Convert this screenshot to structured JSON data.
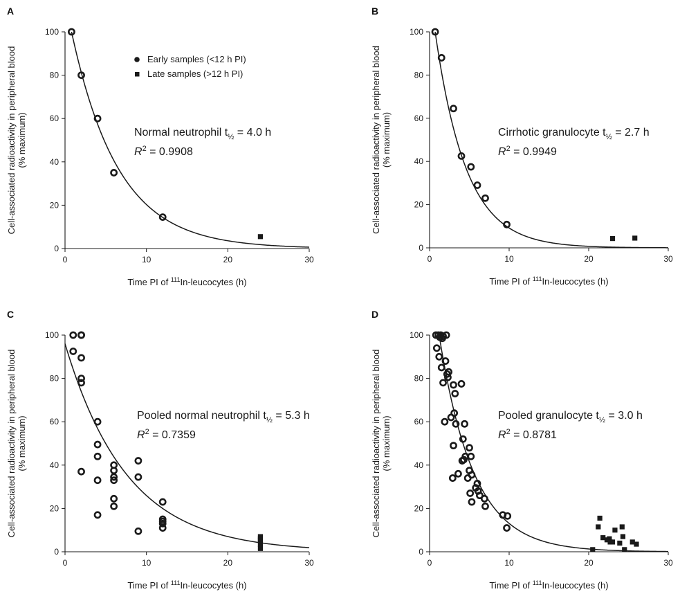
{
  "chart_data": [
    {
      "panel": "A",
      "type": "scatter",
      "xlabel": {
        "before": "Time PI of ",
        "sup": "111",
        "after": "In-leucocytes (h)"
      },
      "ylabel_line1": "Cell-associated radioactivity in peripheral blood",
      "ylabel_line2": "(% maximum)",
      "xlim": [
        0,
        30
      ],
      "ylim": [
        0,
        100
      ],
      "xticks": [
        0,
        10,
        20,
        30
      ],
      "yticks": [
        0,
        20,
        40,
        60,
        80,
        100
      ],
      "legend": [
        {
          "name": "Early samples (<12 h PI)",
          "marker": "circle"
        },
        {
          "name": "Late samples (>12 h PI)",
          "marker": "square"
        }
      ],
      "annotation": {
        "line1_prefix": "Normal neutrophil t",
        "line1_sub": "½",
        "line1_suffix": " = 4.0 h",
        "r2_prefix": "R",
        "r2_sup": "2",
        "r2_value": " = 0.9908"
      },
      "fit": {
        "a": 100,
        "halflife": 4.0,
        "x0": 0.8
      },
      "series": [
        {
          "name": "Early samples (<12 h PI)",
          "marker": "circle",
          "points": [
            [
              0.8,
              100
            ],
            [
              2,
              80
            ],
            [
              4,
              60
            ],
            [
              6,
              35
            ],
            [
              12,
              14.5
            ]
          ]
        },
        {
          "name": "Late samples (>12 h PI)",
          "marker": "square",
          "points": [
            [
              24,
              5.5
            ]
          ]
        }
      ]
    },
    {
      "panel": "B",
      "type": "scatter",
      "xlabel": {
        "before": "Time PI of ",
        "sup": "111",
        "after": "In-leucocytes (h)"
      },
      "ylabel_line1": "Cell-associated radioactivity in peripheral blood",
      "ylabel_line2": "(% maximum)",
      "xlim": [
        0,
        30
      ],
      "ylim": [
        0,
        100
      ],
      "xticks": [
        0,
        10,
        20,
        30
      ],
      "yticks": [
        0,
        20,
        40,
        60,
        80,
        100
      ],
      "annotation": {
        "line1_prefix": "Cirrhotic granulocyte t",
        "line1_sub": "½",
        "line1_suffix": " = 2.7 h",
        "r2_prefix": "R",
        "r2_sup": "2",
        "r2_value": " = 0.9949"
      },
      "fit": {
        "a": 100,
        "halflife": 2.7,
        "x0": 0.7
      },
      "series": [
        {
          "name": "Early samples (<12 h PI)",
          "marker": "circle",
          "points": [
            [
              0.7,
              100
            ],
            [
              1.5,
              88
            ],
            [
              3,
              64.5
            ],
            [
              4,
              42.5
            ],
            [
              5.2,
              37.5
            ],
            [
              6,
              29
            ],
            [
              7,
              23
            ],
            [
              9.7,
              10.8
            ]
          ]
        },
        {
          "name": "Late samples (>12 h PI)",
          "marker": "square",
          "points": [
            [
              23,
              4.3
            ],
            [
              25.8,
              4.5
            ]
          ]
        }
      ]
    },
    {
      "panel": "C",
      "type": "scatter",
      "xlabel": {
        "before": "Time PI of ",
        "sup": "111",
        "after": "In-leucocytes (h)"
      },
      "ylabel_line1": "Cell-associated radioactivity in peripheral blood",
      "ylabel_line2": "(% maximum)",
      "xlim": [
        0,
        30
      ],
      "ylim": [
        0,
        100
      ],
      "xticks": [
        0,
        10,
        20,
        30
      ],
      "yticks": [
        0,
        20,
        40,
        60,
        80,
        100
      ],
      "annotation": {
        "line1_prefix": "Pooled normal neutrophil t",
        "line1_sub": "½",
        "line1_suffix": " = 5.3 h",
        "r2_prefix": "R",
        "r2_sup": "2",
        "r2_value": " = 0.7359"
      },
      "fit": {
        "a": 96,
        "halflife": 5.3,
        "x0": 0
      },
      "series": [
        {
          "name": "Early samples (<12 h PI)",
          "marker": "circle",
          "points": [
            [
              1,
              100
            ],
            [
              1,
              92.5
            ],
            [
              2,
              100
            ],
            [
              2,
              100
            ],
            [
              2,
              89.5
            ],
            [
              2,
              80
            ],
            [
              2,
              78
            ],
            [
              2,
              37
            ],
            [
              4,
              60
            ],
            [
              4,
              49.5
            ],
            [
              4,
              44
            ],
            [
              4,
              33
            ],
            [
              4,
              17
            ],
            [
              6,
              40
            ],
            [
              6,
              37.5
            ],
            [
              6,
              34.5
            ],
            [
              6,
              33
            ],
            [
              6,
              24.5
            ],
            [
              6,
              21
            ],
            [
              9,
              42
            ],
            [
              9,
              34.5
            ],
            [
              9,
              9.5
            ],
            [
              12,
              23
            ],
            [
              12,
              15
            ],
            [
              12,
              14
            ],
            [
              12,
              13
            ],
            [
              12,
              11
            ]
          ]
        },
        {
          "name": "Late samples (>12 h PI)",
          "marker": "square",
          "points": [
            [
              24,
              7
            ],
            [
              24,
              6
            ],
            [
              24,
              5
            ],
            [
              24,
              3.5
            ],
            [
              24,
              1.5
            ]
          ]
        }
      ]
    },
    {
      "panel": "D",
      "type": "scatter",
      "xlabel": {
        "before": "Time PI of ",
        "sup": "111",
        "after": "In-leucocytes (h)"
      },
      "ylabel_line1": "Cell-associated radioactivity in peripheral blood",
      "ylabel_line2": "(% maximum)",
      "xlim": [
        0,
        30
      ],
      "ylim": [
        0,
        100
      ],
      "xticks": [
        0,
        10,
        20,
        30
      ],
      "yticks": [
        0,
        20,
        40,
        60,
        80,
        100
      ],
      "annotation": {
        "line1_prefix": "Pooled granulocyte t",
        "line1_sub": "½",
        "line1_suffix": " = 3.0 h",
        "r2_prefix": "R",
        "r2_sup": "2",
        "r2_value": " = 0.8781"
      },
      "fit": {
        "a": 100,
        "halflife": 3.0,
        "x0": 1.2
      },
      "series": [
        {
          "name": "Early samples (<12 h PI)",
          "marker": "circle",
          "points": [
            [
              0.8,
              100
            ],
            [
              1.1,
              100
            ],
            [
              1.4,
              100
            ],
            [
              1.7,
              99.5
            ],
            [
              2.1,
              100
            ],
            [
              1.3,
              99
            ],
            [
              1.6,
              98.5
            ],
            [
              0.9,
              94
            ],
            [
              1.2,
              90
            ],
            [
              1.5,
              85
            ],
            [
              1.7,
              78
            ],
            [
              2,
              88
            ],
            [
              2.2,
              82
            ],
            [
              2.4,
              83
            ],
            [
              2.3,
              80.5
            ],
            [
              1.9,
              60
            ],
            [
              2.7,
              62
            ],
            [
              3,
              77
            ],
            [
              3.2,
              73
            ],
            [
              3.1,
              64
            ],
            [
              3.3,
              59
            ],
            [
              3,
              49
            ],
            [
              2.9,
              34
            ],
            [
              3.6,
              36
            ],
            [
              4,
              77.5
            ],
            [
              4.2,
              52
            ],
            [
              4.4,
              59
            ],
            [
              4.3,
              42.5
            ],
            [
              4.1,
              42
            ],
            [
              4.5,
              44
            ],
            [
              4.8,
              34
            ],
            [
              5,
              48
            ],
            [
              5.2,
              44
            ],
            [
              5,
              37.5
            ],
            [
              5.3,
              35.5
            ],
            [
              5.1,
              27
            ],
            [
              5.3,
              23
            ],
            [
              5.8,
              29.5
            ],
            [
              6,
              31.5
            ],
            [
              6.1,
              28
            ],
            [
              6.3,
              26
            ],
            [
              6.9,
              24.5
            ],
            [
              7,
              21
            ],
            [
              9.2,
              17
            ],
            [
              9.8,
              16.5
            ],
            [
              9.7,
              11
            ]
          ]
        },
        {
          "name": "Late samples (>12 h PI)",
          "marker": "square",
          "points": [
            [
              20.5,
              1
            ],
            [
              21.2,
              11.5
            ],
            [
              21.4,
              15.5
            ],
            [
              21.8,
              6.5
            ],
            [
              22.3,
              5.5
            ],
            [
              22.6,
              6
            ],
            [
              22.7,
              4.5
            ],
            [
              23,
              4.5
            ],
            [
              23.3,
              10
            ],
            [
              23.9,
              4
            ],
            [
              24.2,
              11.5
            ],
            [
              24.3,
              7
            ],
            [
              24.5,
              1
            ],
            [
              25.5,
              4.5
            ],
            [
              26,
              3.5
            ]
          ]
        }
      ]
    }
  ]
}
